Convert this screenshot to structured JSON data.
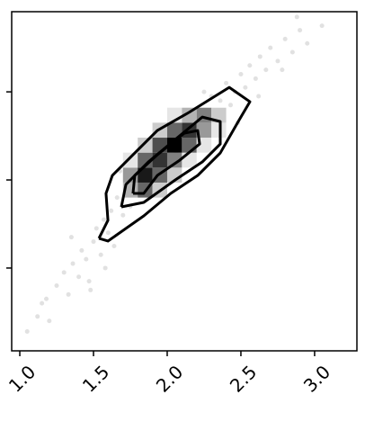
{
  "chart_data": {
    "type": "scatter",
    "xlim": [
      0.945,
      3.287
    ],
    "ylim": [
      -1.94,
      1.91
    ],
    "xticks": [
      {
        "value": 1.0,
        "label": "1.0"
      },
      {
        "value": 1.5,
        "label": "1.5"
      },
      {
        "value": 2.0,
        "label": "2.0"
      },
      {
        "value": 2.5,
        "label": "2.5"
      },
      {
        "value": 3.0,
        "label": "3.0"
      }
    ],
    "yticks": [
      -1,
      0,
      1
    ],
    "x": [
      1.05,
      1.12,
      1.18,
      1.2,
      1.25,
      1.3,
      1.33,
      1.36,
      1.4,
      1.42,
      1.45,
      1.47,
      1.5,
      1.52,
      1.55,
      1.57,
      1.6,
      1.62,
      1.64,
      1.66,
      1.7,
      1.72,
      1.75,
      1.78,
      1.8,
      1.83,
      1.86,
      1.9,
      1.93,
      1.95,
      1.98,
      2.0,
      2.03,
      2.06,
      2.1,
      2.12,
      2.15,
      2.18,
      2.2,
      2.23,
      2.26,
      2.3,
      2.33,
      2.36,
      2.4,
      2.43,
      2.46,
      2.5,
      2.53,
      2.56,
      2.6,
      2.63,
      2.67,
      2.7,
      2.75,
      2.8,
      2.85,
      2.9,
      2.95,
      3.05,
      1.35,
      1.48,
      1.58,
      1.68,
      2.25,
      2.48,
      2.62,
      2.78,
      1.15,
      2.88
    ],
    "y": [
      -1.72,
      -1.55,
      -1.35,
      -1.6,
      -1.2,
      -1.05,
      -1.3,
      -0.95,
      -1.1,
      -0.8,
      -0.9,
      -1.15,
      -0.7,
      -0.55,
      -0.85,
      -0.45,
      -0.6,
      -0.35,
      -0.75,
      -0.2,
      -0.4,
      -0.05,
      -0.3,
      0.0,
      -0.15,
      0.15,
      0.05,
      0.25,
      0.1,
      0.4,
      0.2,
      0.35,
      0.5,
      0.3,
      0.55,
      0.45,
      0.7,
      0.5,
      0.8,
      0.6,
      0.75,
      0.95,
      0.7,
      0.9,
      1.1,
      0.85,
      1.0,
      1.2,
      1.05,
      1.3,
      1.15,
      1.4,
      1.25,
      1.5,
      1.35,
      1.6,
      1.45,
      1.7,
      1.55,
      1.75,
      -0.65,
      -1.25,
      -1.0,
      0.1,
      1.0,
      0.65,
      0.95,
      1.25,
      -1.4,
      1.85
    ],
    "hist2d": {
      "xbins": [
        1.7,
        1.8,
        1.9,
        2.0,
        2.1,
        2.2,
        2.3,
        2.4
      ],
      "ybins": [
        -0.2,
        -0.03,
        0.14,
        0.31,
        0.48,
        0.65,
        0.82
      ],
      "counts": [
        [
          3,
          6,
          2,
          0,
          0,
          0,
          0
        ],
        [
          4,
          9,
          6,
          2,
          0,
          0,
          0
        ],
        [
          1,
          6,
          8,
          5,
          1,
          0,
          0
        ],
        [
          0,
          2,
          7,
          10,
          6,
          1,
          0
        ],
        [
          0,
          0,
          2,
          6,
          8,
          4,
          1
        ],
        [
          0,
          0,
          0,
          1,
          3,
          5,
          2
        ]
      ]
    },
    "contours": [
      {
        "x": [
          1.537,
          1.598,
          1.585,
          1.628,
          1.78,
          1.933,
          2.146,
          2.421,
          2.561,
          2.482,
          2.36,
          2.207,
          2.024,
          1.841,
          1.598,
          1.537
        ],
        "y": [
          -0.663,
          -0.459,
          -0.153,
          0.051,
          0.306,
          0.561,
          0.765,
          1.051,
          0.888,
          0.663,
          0.306,
          0.051,
          -0.153,
          -0.408,
          -0.694,
          -0.663
        ]
      },
      {
        "x": [
          1.689,
          1.72,
          1.872,
          2.055,
          2.238,
          2.36,
          2.36,
          2.238,
          2.055,
          1.841,
          1.689
        ],
        "y": [
          -0.306,
          -0.051,
          0.204,
          0.459,
          0.714,
          0.663,
          0.408,
          0.204,
          0,
          -0.255,
          -0.306
        ]
      },
      {
        "x": [
          1.768,
          1.78,
          1.933,
          2.116,
          2.207,
          2.22,
          2.085,
          1.933,
          1.841,
          1.768
        ],
        "y": [
          -0.153,
          0.051,
          0.286,
          0.531,
          0.561,
          0.408,
          0.224,
          0.051,
          -0.153,
          -0.153
        ]
      }
    ]
  }
}
